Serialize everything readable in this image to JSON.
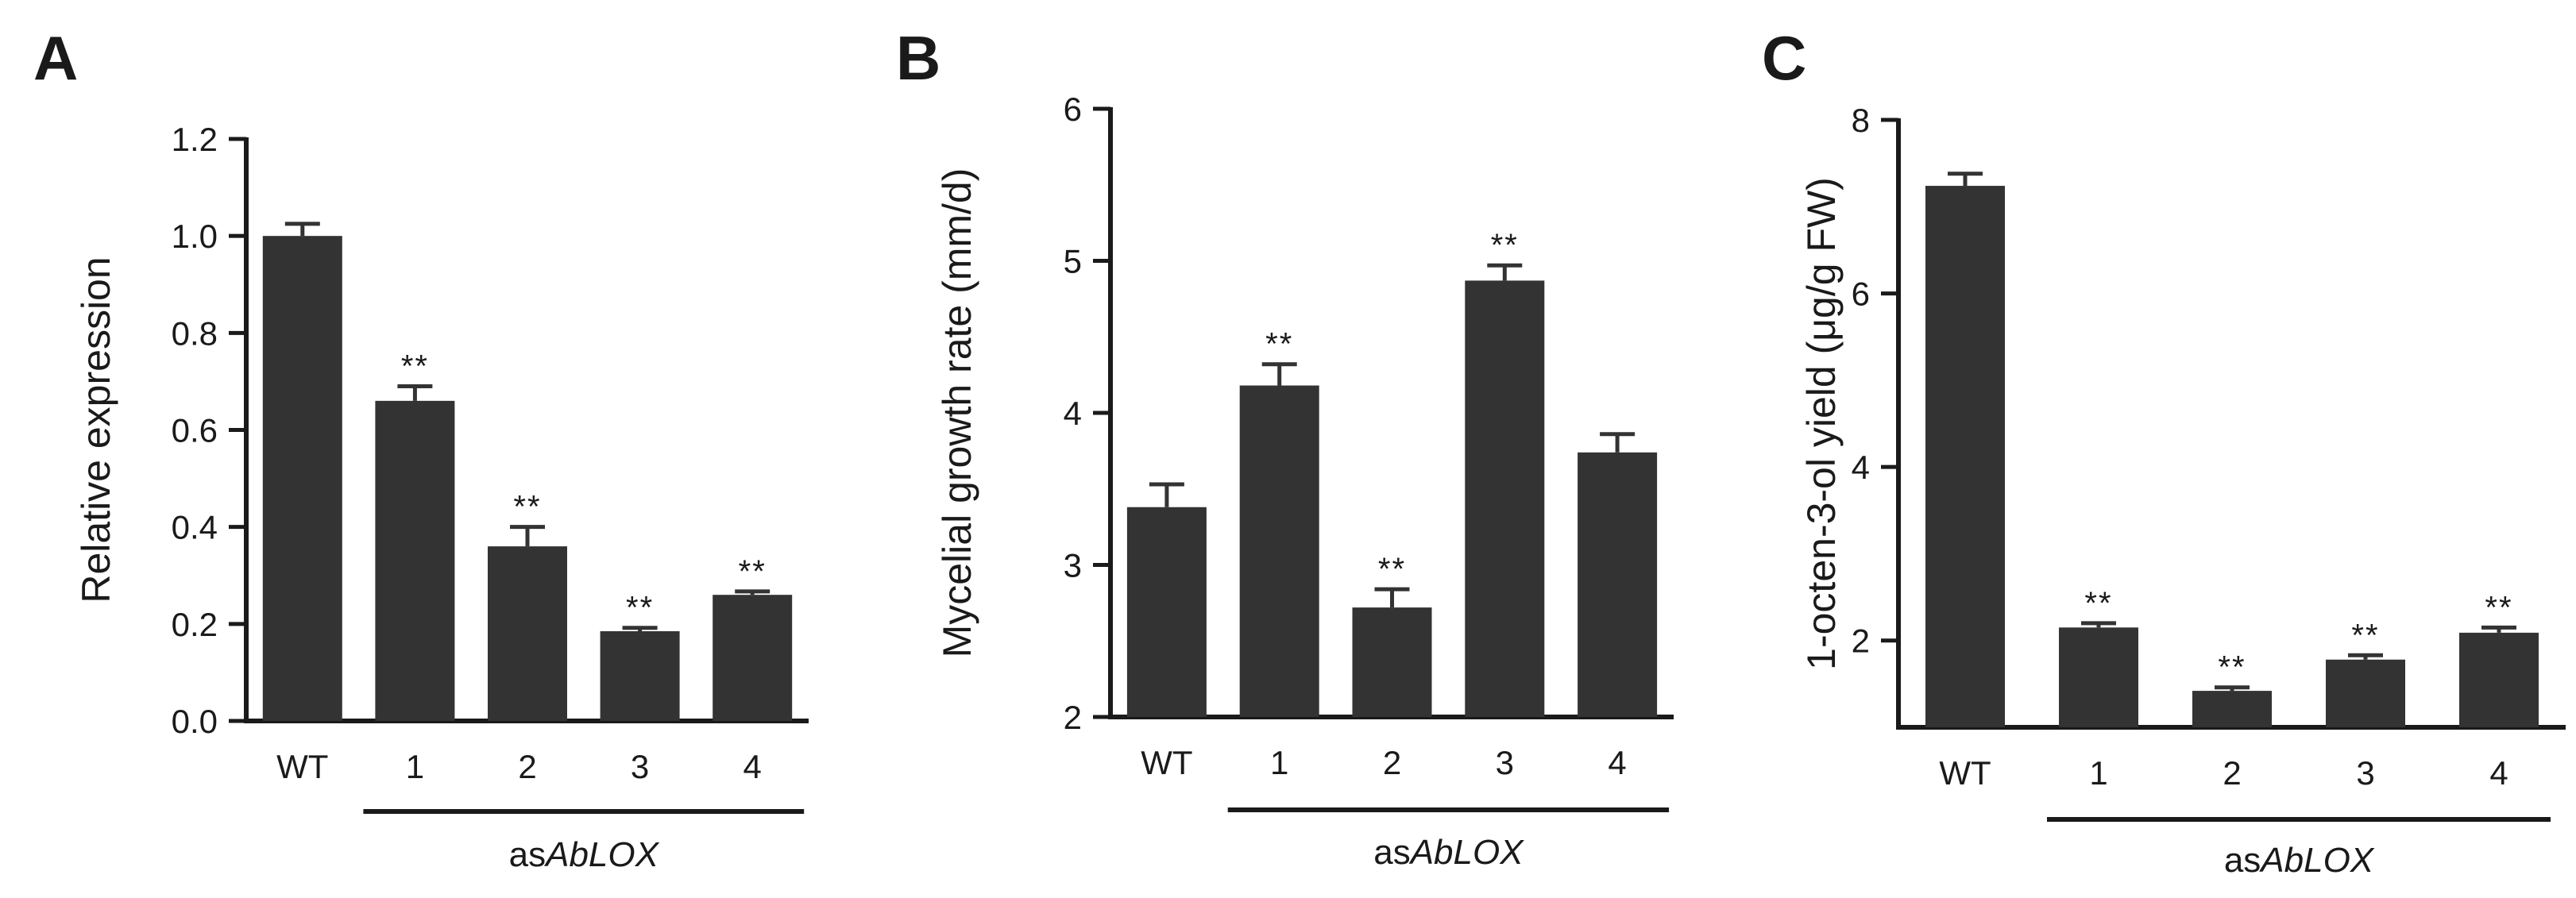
{
  "colors": {
    "bar": "#333333",
    "axis": "#1a1a1a",
    "text": "#1a1a1a"
  },
  "chart_data": [
    {
      "panel": "A",
      "type": "bar",
      "title": "",
      "xlabel": "",
      "ylabel": "Relative expression",
      "ylim": [
        0,
        1.2
      ],
      "yticks": [
        "0.0",
        "0.2",
        "0.4",
        "0.6",
        "0.8",
        "1.0",
        "1.2"
      ],
      "categories": [
        "WT",
        "1",
        "2",
        "3",
        "4"
      ],
      "values": [
        1.0,
        0.66,
        0.36,
        0.185,
        0.26
      ],
      "errors": [
        0.025,
        0.03,
        0.04,
        0.007,
        0.007
      ],
      "significance": [
        "",
        "**",
        "**",
        "**",
        "**"
      ],
      "group_label": {
        "prefix": "as",
        "italic": "AbLOX"
      }
    },
    {
      "panel": "B",
      "type": "bar",
      "title": "",
      "xlabel": "",
      "ylabel": "Mycelial growth rate (mm/d)",
      "ylim": [
        2,
        6
      ],
      "yticks": [
        "2",
        "3",
        "4",
        "5",
        "6"
      ],
      "categories": [
        "WT",
        "1",
        "2",
        "3",
        "4"
      ],
      "values": [
        3.38,
        4.18,
        2.72,
        4.87,
        3.74
      ],
      "errors": [
        0.15,
        0.14,
        0.12,
        0.1,
        0.12
      ],
      "significance": [
        "",
        "**",
        "**",
        "**",
        ""
      ],
      "group_label": {
        "prefix": "as",
        "italic": "AbLOX"
      }
    },
    {
      "panel": "C",
      "type": "bar",
      "title": "",
      "xlabel": "",
      "ylabel": "1-octen-3-ol yield (μg/g FW)",
      "ylim": [
        1,
        8
      ],
      "yticks": [
        "2",
        "4",
        "6",
        "8"
      ],
      "categories": [
        "WT",
        "1",
        "2",
        "3",
        "4"
      ],
      "values": [
        7.24,
        2.15,
        1.42,
        1.78,
        2.09
      ],
      "errors": [
        0.14,
        0.05,
        0.04,
        0.05,
        0.06
      ],
      "significance": [
        "",
        "**",
        "**",
        "**",
        "**"
      ],
      "group_label": {
        "prefix": "as",
        "italic": "AbLOX"
      }
    }
  ]
}
